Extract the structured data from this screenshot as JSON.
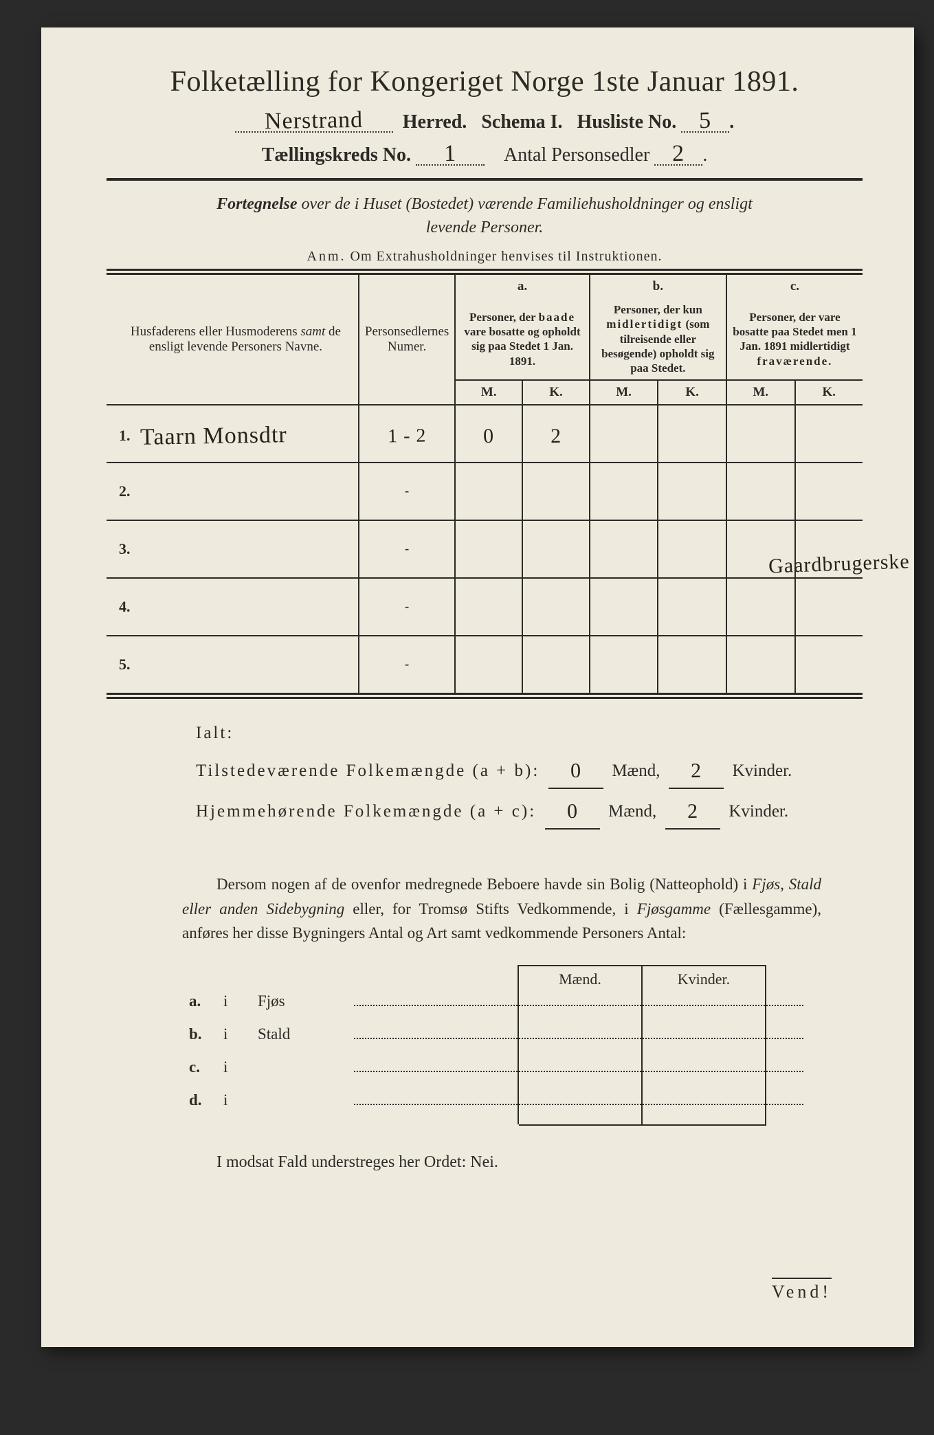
{
  "title": "Folketælling for Kongeriget Norge 1ste Januar 1891.",
  "header": {
    "herred_value": "Nerstrand",
    "herred_label": "Herred.",
    "schema_label": "Schema I.",
    "husliste_label": "Husliste No.",
    "husliste_value": "5",
    "kreds_label": "Tællingskreds No.",
    "kreds_value": "1",
    "antal_label": "Antal Personsedler",
    "antal_value": "2"
  },
  "subhead_line1_prefix": "Fortegnelse",
  "subhead_line1_rest": " over de i Huset (Bostedet) værende Familiehusholdninger og ensligt",
  "subhead_line2": "levende Personer.",
  "anm_label": "Anm.",
  "anm_text": " Om Extrahusholdninger henvises til Instruktionen.",
  "columns": {
    "name": "Husfaderens eller Husmoderens samt de ensligt levende Personers Navne.",
    "num": "Personsedlernes Numer.",
    "a_tag": "a.",
    "a_desc": "Personer, der baade vare bosatte og opholdt sig paa Stedet 1 Jan. 1891.",
    "b_tag": "b.",
    "b_desc": "Personer, der kun midlertidigt (som tilreisende eller besøgende) opholdt sig paa Stedet.",
    "c_tag": "c.",
    "c_desc": "Personer, der vare bosatte paa Stedet men 1 Jan. 1891 midlertidigt fraværende.",
    "M": "M.",
    "K": "K."
  },
  "rows": [
    {
      "n": "1.",
      "name": "Taarn Monsdtr",
      "num": "1 - 2",
      "aM": "0",
      "aK": "2",
      "bM": "",
      "bK": "",
      "cM": "",
      "cK": ""
    },
    {
      "n": "2.",
      "name": "",
      "num": "-",
      "aM": "",
      "aK": "",
      "bM": "",
      "bK": "",
      "cM": "",
      "cK": ""
    },
    {
      "n": "3.",
      "name": "",
      "num": "-",
      "aM": "",
      "aK": "",
      "bM": "",
      "bK": "",
      "cM": "",
      "cK": ""
    },
    {
      "n": "4.",
      "name": "",
      "num": "-",
      "aM": "",
      "aK": "",
      "bM": "",
      "bK": "",
      "cM": "",
      "cK": ""
    },
    {
      "n": "5.",
      "name": "",
      "num": "-",
      "aM": "",
      "aK": "",
      "bM": "",
      "bK": "",
      "cM": "",
      "cK": ""
    }
  ],
  "marginal_note": "Gaardbrugerske",
  "totals": {
    "ialt": "Ialt:",
    "tilstede_label": "Tilstedeværende Folkemængde (a + b):",
    "hjemme_label": "Hjemmehørende Folkemængde (a + c):",
    "maend": "Mænd,",
    "kvinder": "Kvinder.",
    "tilstede_m": "0",
    "tilstede_k": "2",
    "hjemme_m": "0",
    "hjemme_k": "2"
  },
  "body_para": {
    "t1": "Dersom nogen af de ovenfor medregnede Beboere havde sin Bolig (Natteophold) i ",
    "i1": "Fjøs, Stald eller anden Sidebygning",
    "t2": " eller, for Tromsø Stifts Vedkommende, i ",
    "i2": "Fjøsgamme",
    "t3": " (Fællesgamme), anføres her disse Bygningers Antal og Art samt vedkommende Personers Antal:"
  },
  "side": {
    "maend": "Mænd.",
    "kvinder": "Kvinder.",
    "rows": [
      {
        "tag": "a.",
        "i": "i",
        "label": "Fjøs"
      },
      {
        "tag": "b.",
        "i": "i",
        "label": "Stald"
      },
      {
        "tag": "c.",
        "i": "i",
        "label": ""
      },
      {
        "tag": "d.",
        "i": "i",
        "label": ""
      }
    ]
  },
  "nei_line": "I modsat Fald understreges her Ordet: Nei.",
  "vend": "Vend!",
  "colors": {
    "paper": "#efeade",
    "ink": "#2d2a26",
    "handwriting": "#26221b",
    "background": "#2a2a2a"
  }
}
